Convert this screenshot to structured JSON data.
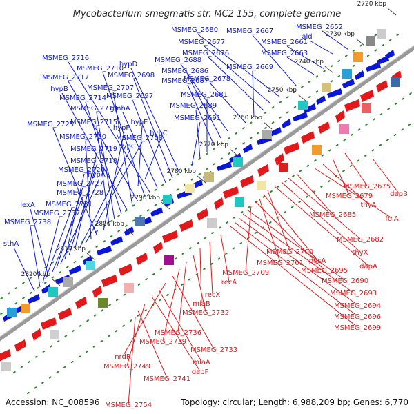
{
  "title": "Mycobacterium smegmatis str. MC2 155, complete genome",
  "footer": {
    "accession": "Accession: NC_008596",
    "topology": "Topology: circular; Length: 6,988,209 bp; Genes: 6,770"
  },
  "scale_labels": [
    "2720 kbp",
    "2730 kbp",
    "2740 kbp",
    "2750 kbp",
    "2760 kbp",
    "2770 kbp",
    "2780 kbp",
    "2790 kbp",
    "2800 kbp",
    "2810 kbp",
    "2820 kbp"
  ],
  "forward_labels": [
    "MSMEG_2652",
    "ald",
    "MSMEG_2661",
    "MSMEG_2663",
    "MSMEG_2667",
    "MSMEG_2680",
    "MSMEG_2677",
    "MSMEG_2676",
    "MSMEG_2669",
    "MSMEG_2678",
    "MSMEG_2688",
    "MSMEG_2686",
    "MSMEG_2687",
    "MSMEG_2681",
    "MSMEG_2689",
    "MSMEG_2691",
    "hypD",
    "MSMEG_2698",
    "MSMEG_2697",
    "gmhA",
    "MSMEG_2716",
    "MSMEG_2710",
    "MSMEG_2717",
    "MSMEG_2707",
    "hypB",
    "MSMEG_2714",
    "MSMEG_2713",
    "MSMEG_2715",
    "hypF",
    "hypE",
    "hypC",
    "MSMEG_2725",
    "MSMEG_2720",
    "MSMEG_2708",
    "hypC",
    "MSMEG_2719",
    "MSMEG_2718",
    "MSMEG_2726",
    "hypA",
    "MSMEG_2727",
    "MSMEG_2728",
    "lexA",
    "MSMEG_2731",
    "MSMEG_2737",
    "MSMEG_2738",
    "sthA"
  ],
  "reverse_labels": [
    "dapB",
    "MSMEG_2675",
    "MSMEG_2679",
    "thyA",
    "folA",
    "MSMEG_2685",
    "MSMEG_2682",
    "thyX",
    "dapA",
    "MSMEG_2700",
    "pgsA",
    "MSMEG_2701",
    "MSMEG_2695",
    "MSMEG_2709",
    "MSMEG_2690",
    "MSMEG_2693",
    "MSMEG_2694",
    "MSMEG_2696",
    "MSMEG_2699",
    "recA",
    "recX",
    "miaB",
    "MSMEG_2732",
    "MSMEG_2736",
    "MSMEG_2739",
    "MSMEG_2733",
    "nrdR",
    "miaA",
    "dapF",
    "MSMEG_2749",
    "MSMEG_2741",
    "MSMEG_2754"
  ],
  "colors": {
    "forward": "#0b17d8",
    "reverse": "#e2181b",
    "backbone": "#8a8a8a",
    "tick": "#2a8a2a"
  }
}
